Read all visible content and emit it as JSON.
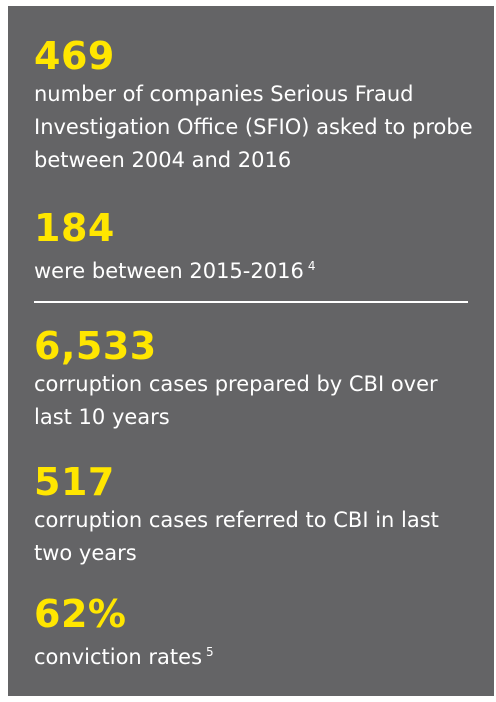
{
  "stats": [
    {
      "value": "469",
      "description": "number of companies Serious Fraud Investigation Office (SFIO) asked to probe between 2004 and 2016",
      "footnote": ""
    },
    {
      "value": "184",
      "description": "were between 2015-2016",
      "footnote": "4"
    },
    {
      "value": "6,533",
      "description": "corruption cases prepared by CBI over last 10 years",
      "footnote": ""
    },
    {
      "value": "517",
      "description": "corruption cases referred to CBI in last two years",
      "footnote": ""
    },
    {
      "value": "62%",
      "description": "conviction rates",
      "footnote": "5"
    }
  ],
  "colors": {
    "panel_background": "#646466",
    "accent_yellow": "#ffe600",
    "text_white": "#ffffff"
  }
}
